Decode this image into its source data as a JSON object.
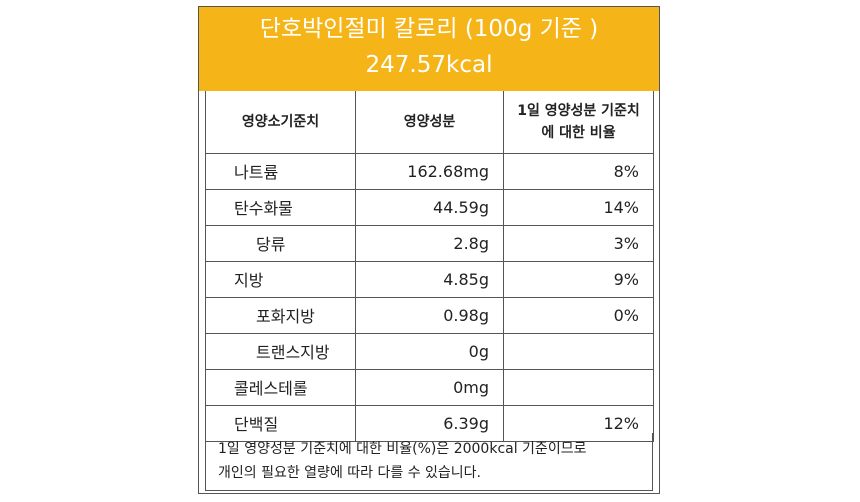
{
  "header": {
    "title": "단호박인절미 칼로리 (100g 기준 )",
    "calories": "247.57kcal"
  },
  "table": {
    "columns": [
      "영양소기준치",
      "영양성분",
      "1일 영양성분 기준치에 대한 비율"
    ],
    "rows": [
      {
        "name": "나트륨",
        "value": "162.68mg",
        "percent": "8%",
        "indent": 0
      },
      {
        "name": "탄수화물",
        "value": "44.59g",
        "percent": "14%",
        "indent": 0
      },
      {
        "name": "당류",
        "value": "2.8g",
        "percent": "3%",
        "indent": 1
      },
      {
        "name": "지방",
        "value": "4.85g",
        "percent": "9%",
        "indent": 0
      },
      {
        "name": "포화지방",
        "value": "0.98g",
        "percent": "0%",
        "indent": 1
      },
      {
        "name": "트랜스지방",
        "value": "0g",
        "percent": "",
        "indent": 1
      },
      {
        "name": "콜레스테롤",
        "value": "0mg",
        "percent": "",
        "indent": 0
      },
      {
        "name": "단백질",
        "value": "6.39g",
        "percent": "12%",
        "indent": 0
      }
    ]
  },
  "footnote": {
    "line1": "1일 영양성분 기준치에 대한 비율(%)은 2000kcal 기준이므로",
    "line2": "개인의 필요한 열량에 따라 다를 수 있습니다."
  },
  "colors": {
    "header_bg": "#f5b518",
    "header_text": "#ffffff"
  }
}
